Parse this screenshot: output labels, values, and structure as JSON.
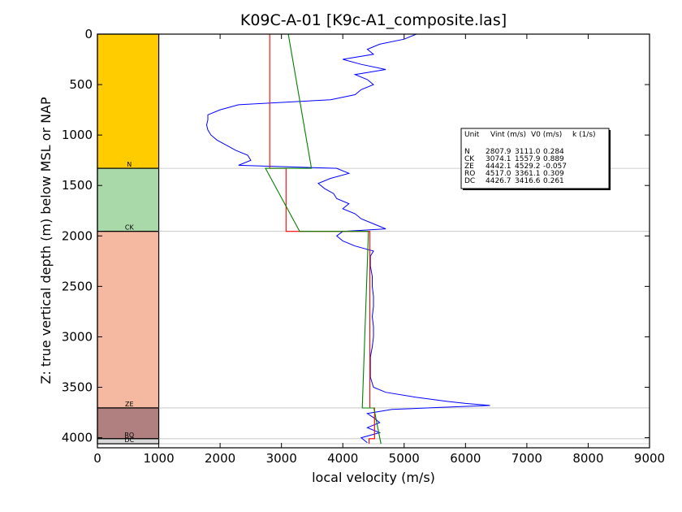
{
  "chart_data": {
    "type": "line",
    "title": "K09C-A-01 [K9c-A1_composite.las]",
    "xlabel": "local velocity (m/s)",
    "ylabel": "Z: true vertical depth (m) below MSL or NAP",
    "xlim": [
      0,
      9000
    ],
    "ylim": [
      4100,
      0
    ],
    "x_ticks": [
      "0",
      "1000",
      "2000",
      "3000",
      "4000",
      "5000",
      "6000",
      "7000",
      "8000",
      "9000"
    ],
    "y_ticks": [
      "0",
      "500",
      "1000",
      "1500",
      "2000",
      "2500",
      "3000",
      "3500",
      "4000"
    ],
    "grid": false,
    "units": [
      {
        "name": "N",
        "top": 0,
        "base": 1330,
        "color": "#ffcc00",
        "Vint": 2807.9,
        "V0": 3111.0,
        "k": 0.284
      },
      {
        "name": "CK",
        "top": 1330,
        "base": 1955,
        "color": "#a9d9a9",
        "Vint": 3074.1,
        "V0": 1557.9,
        "k": 0.889
      },
      {
        "name": "ZE",
        "top": 1955,
        "base": 3705,
        "color": "#f5b8a0",
        "Vint": 4442.1,
        "V0": 4529.2,
        "k": -0.057
      },
      {
        "name": "RO",
        "top": 3705,
        "base": 4010,
        "color": "#b08080",
        "Vint": 4517.0,
        "V0": 3361.1,
        "k": 0.309
      },
      {
        "name": "DC",
        "top": 4010,
        "base": 4060,
        "color": "#d9d9d9",
        "Vint": 4426.7,
        "V0": 3416.6,
        "k": 0.261
      }
    ],
    "table": {
      "headers": [
        "Unit",
        "Vint (m/s)",
        "V0 (m/s)",
        "k (1/s)"
      ],
      "rows": [
        [
          "N",
          "2807.9",
          "3111.0",
          "0.284"
        ],
        [
          "CK",
          "3074.1",
          "1557.9",
          "0.889"
        ],
        [
          "ZE",
          "4442.1",
          "4529.2",
          "-0.057"
        ],
        [
          "RO",
          "4517.0",
          "3361.1",
          "0.309"
        ],
        [
          "DC",
          "4426.7",
          "3416.6",
          "0.261"
        ]
      ]
    },
    "series": [
      {
        "color": "#0000ff",
        "depth": [
          0,
          50,
          100,
          150,
          200,
          250,
          300,
          350,
          400,
          450,
          500,
          550,
          600,
          650,
          700,
          750,
          800,
          850,
          900,
          950,
          1000,
          1050,
          1100,
          1150,
          1200,
          1250,
          1300,
          1330,
          1380,
          1430,
          1480,
          1530,
          1580,
          1630,
          1680,
          1730,
          1780,
          1830,
          1880,
          1930,
          1955,
          2000,
          2050,
          2100,
          2150,
          2200,
          2300,
          2400,
          2500,
          2600,
          2700,
          2800,
          2900,
          3000,
          3100,
          3200,
          3300,
          3400,
          3500,
          3550,
          3600,
          3640,
          3660,
          3680,
          3700,
          3720,
          3760,
          3800,
          3850,
          3900,
          3950,
          4000,
          4050
        ],
        "velocity": [
          5200,
          5000,
          4600,
          4400,
          4500,
          4000,
          4300,
          4700,
          4200,
          4400,
          4500,
          4300,
          4200,
          3800,
          2300,
          2000,
          1800,
          1800,
          1780,
          1800,
          1850,
          1950,
          2100,
          2250,
          2450,
          2500,
          2300,
          3900,
          4100,
          3800,
          3600,
          3700,
          3850,
          3900,
          4100,
          4000,
          4200,
          4300,
          4500,
          4700,
          4000,
          3900,
          4000,
          4200,
          4500,
          4450,
          4450,
          4480,
          4480,
          4500,
          4500,
          4480,
          4500,
          4500,
          4480,
          4450,
          4450,
          4450,
          4500,
          4700,
          5200,
          5700,
          6000,
          6400,
          5600,
          4800,
          4400,
          4500,
          4600,
          4400,
          4600,
          4300,
          4400
        ]
      },
      {
        "color": "#ff0000",
        "depth": [
          0,
          1330,
          1330,
          1955,
          1955,
          3705,
          3705,
          4010,
          4010,
          4060
        ],
        "velocity": [
          2807.9,
          2807.9,
          3074.1,
          3074.1,
          4442.1,
          4442.1,
          4517.0,
          4517.0,
          4426.7,
          4426.7
        ]
      },
      {
        "color": "#008000",
        "depth": [
          0,
          1330,
          1330,
          1955,
          1955,
          3705,
          3705,
          4060
        ],
        "velocity": [
          3111.0,
          3489,
          2740,
          3297,
          4418,
          4318,
          4506,
          4622
        ]
      }
    ]
  }
}
